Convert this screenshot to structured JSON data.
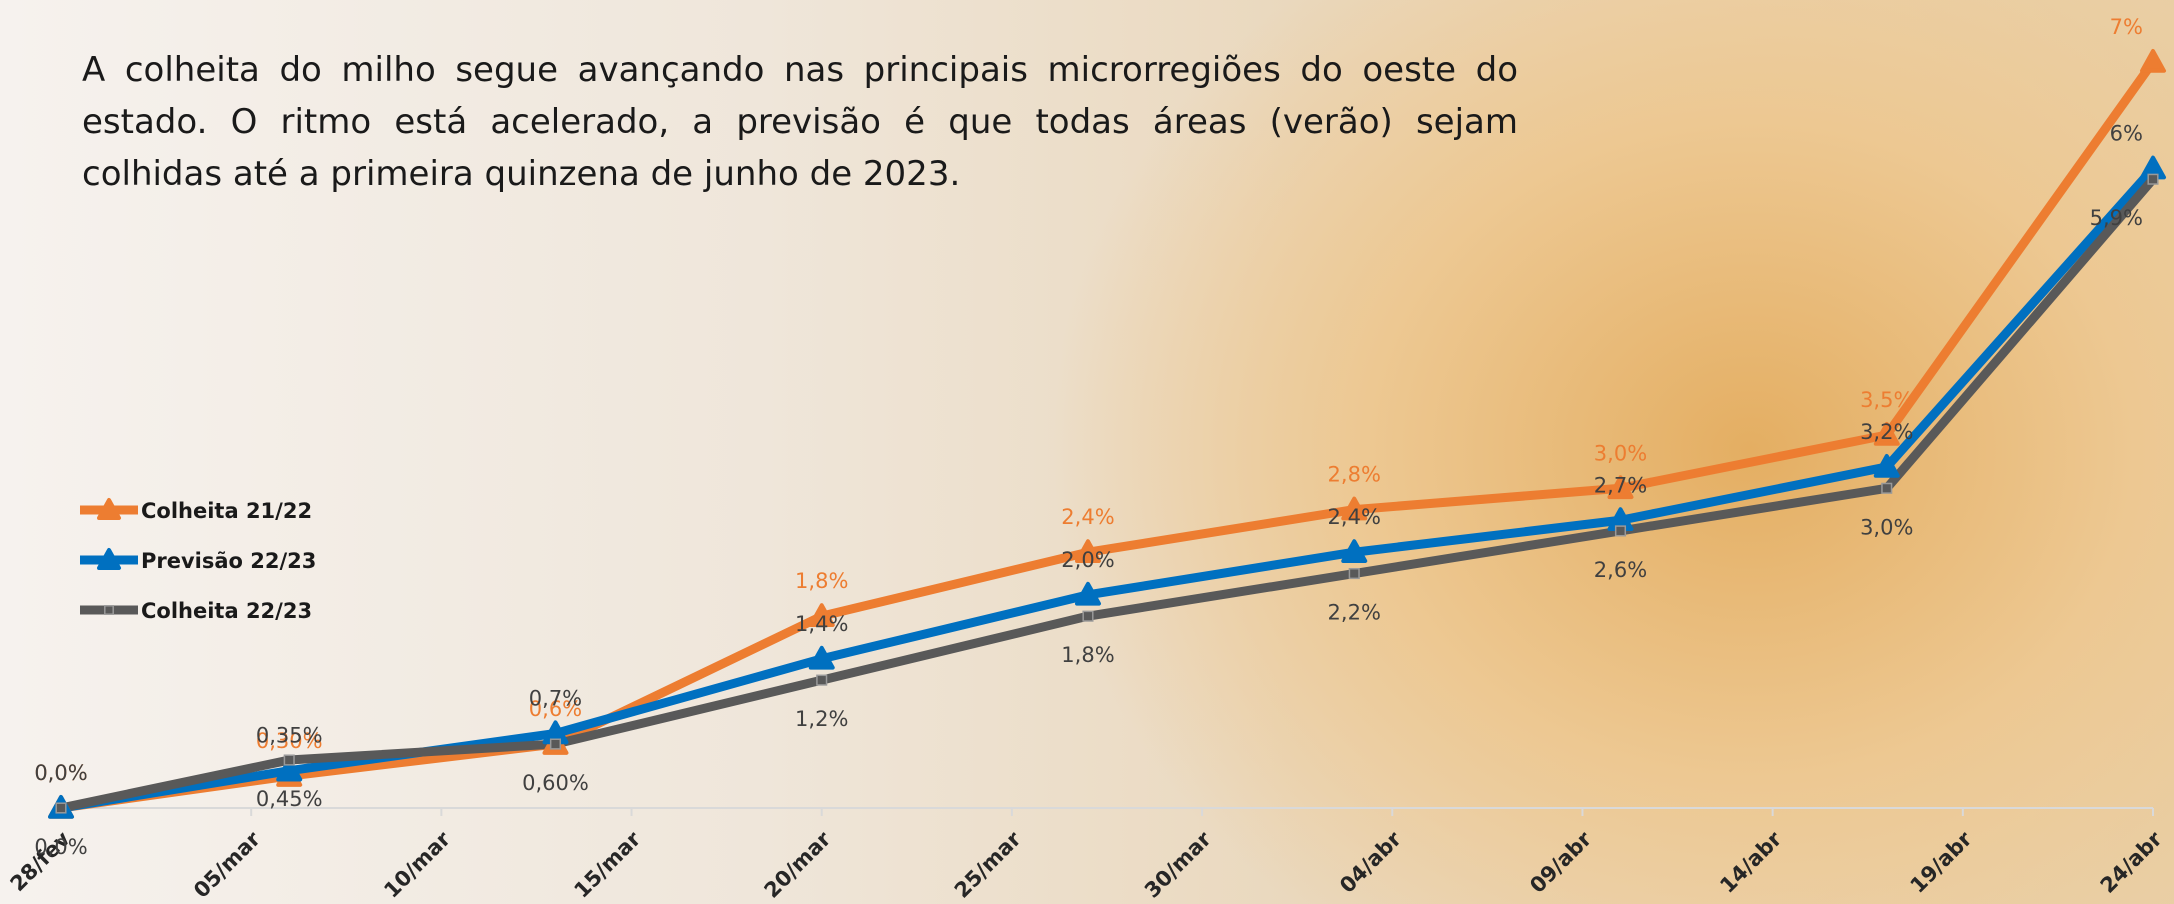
{
  "chart_data": {
    "type": "line",
    "annotation": "A colheita do milho segue avançando nas principais microrregiões do oeste do estado. O ritmo está acelerado, a previsão é que todas áreas (verão) sejam colhidas até a primeira quinzena de junho de 2023.",
    "x": [
      0,
      6,
      13,
      20,
      27,
      34,
      41,
      48,
      55
    ],
    "xlim": [
      0,
      55
    ],
    "xticks": [
      {
        "value": 0,
        "label": "28/fev"
      },
      {
        "value": 5,
        "label": "05/mar"
      },
      {
        "value": 10,
        "label": "10/mar"
      },
      {
        "value": 15,
        "label": "15/mar"
      },
      {
        "value": 20,
        "label": "20/mar"
      },
      {
        "value": 25,
        "label": "25/mar"
      },
      {
        "value": 30,
        "label": "30/mar"
      },
      {
        "value": 35,
        "label": "04/abr"
      },
      {
        "value": 40,
        "label": "09/abr"
      },
      {
        "value": 45,
        "label": "14/abr"
      },
      {
        "value": 50,
        "label": "19/abr"
      },
      {
        "value": 55,
        "label": "24/abr"
      }
    ],
    "ylim": [
      0,
      7
    ],
    "legend": "left",
    "series": [
      {
        "name": "Colheita 21/22",
        "color": "#ed7d31",
        "marker": "triangle",
        "label_color": "#ed7d31",
        "values": [
          0,
          0.3,
          0.6,
          1.8,
          2.4,
          2.8,
          3.0,
          3.5,
          7
        ],
        "value_labels": [
          "0,0%",
          "0,30%",
          "0,6%",
          "1,8%",
          "2,4%",
          "2,8%",
          "3,0%",
          "3,5%",
          "7%"
        ]
      },
      {
        "name": "Previsão 22/23",
        "color": "#0070c0",
        "marker": "triangle",
        "label_color": "#404040",
        "values": [
          0,
          0.35,
          0.7,
          1.4,
          2.0,
          2.4,
          2.7,
          3.2,
          6
        ],
        "value_labels": [
          "0,0%",
          "0,35%",
          "0,7%",
          "1,4%",
          "2,0%",
          "2,4%",
          "2,7%",
          "3,2%",
          "6%"
        ]
      },
      {
        "name": "Colheita 22/23",
        "color": "#595959",
        "marker": "square",
        "label_color": "#404040",
        "values": [
          0,
          0.45,
          0.6,
          1.2,
          1.8,
          2.2,
          2.6,
          3.0,
          5.9
        ],
        "value_labels": [
          "0,0%",
          "0,45%",
          "0,60%",
          "1,2%",
          "1,8%",
          "2,2%",
          "2,6%",
          "3,0%",
          "5,9%"
        ]
      }
    ]
  }
}
